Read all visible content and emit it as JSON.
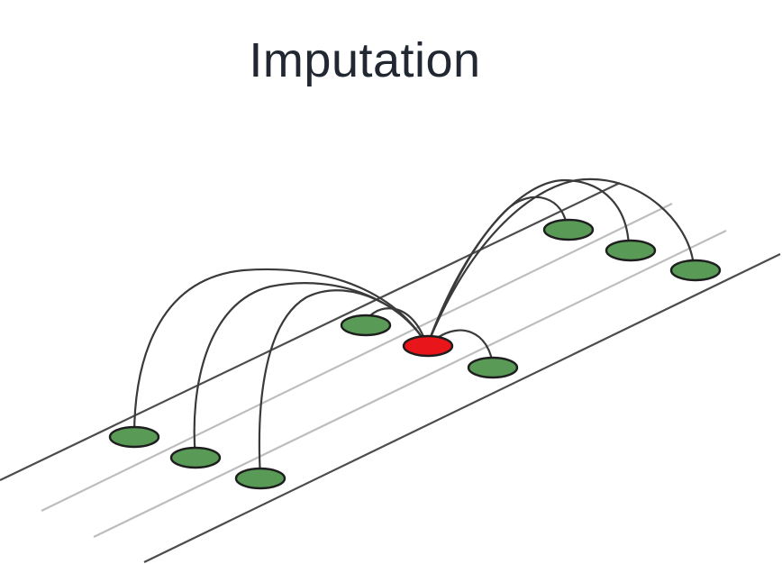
{
  "title": "Imputation",
  "colors": {
    "observed_fill": "#5a9a57",
    "missing_fill": "#e8151b",
    "outline": "#1e1e1e",
    "track_dark": "#4c4c4c",
    "track_light": "#bdbdbd",
    "arc": "#3a3a3a",
    "title_text": "#222831"
  },
  "legend_semantics": {
    "green_nodes": "observed",
    "red_node": "missing"
  }
}
